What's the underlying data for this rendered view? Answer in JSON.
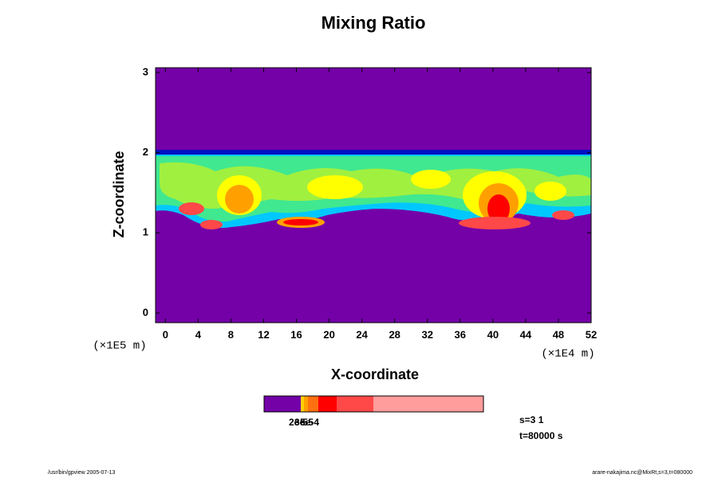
{
  "chart_data": {
    "type": "contour",
    "title": "Mixing Ratio",
    "xlabel": "X-coordinate",
    "ylabel": "Z-coordinate",
    "xunit": "(×1E4 m)",
    "yunit": "(×1E5 m)",
    "xlim": [
      -1.2,
      52
    ],
    "ylim": [
      -0.12,
      3.06
    ],
    "xticks": [
      0,
      4,
      8,
      12,
      16,
      20,
      24,
      28,
      32,
      36,
      40,
      44,
      48,
      52
    ],
    "yticks": [
      0,
      1,
      2,
      3
    ],
    "colorbar": {
      "colors": [
        "#7400a8",
        "#ffd000",
        "#ffa000",
        "#ff7010",
        "#ff0000",
        "#ff4848",
        "#ff9c9c"
      ],
      "labels": [
        "2e-5",
        "3e-5",
        "5e-4"
      ]
    },
    "info": [
      "s=3 1",
      "t=80000 s"
    ],
    "footer_left": "/usr/bin/gpview 2005-07-13",
    "footer_right": "arare-nakajima.nc@MixRt,s=3,t=080000"
  }
}
